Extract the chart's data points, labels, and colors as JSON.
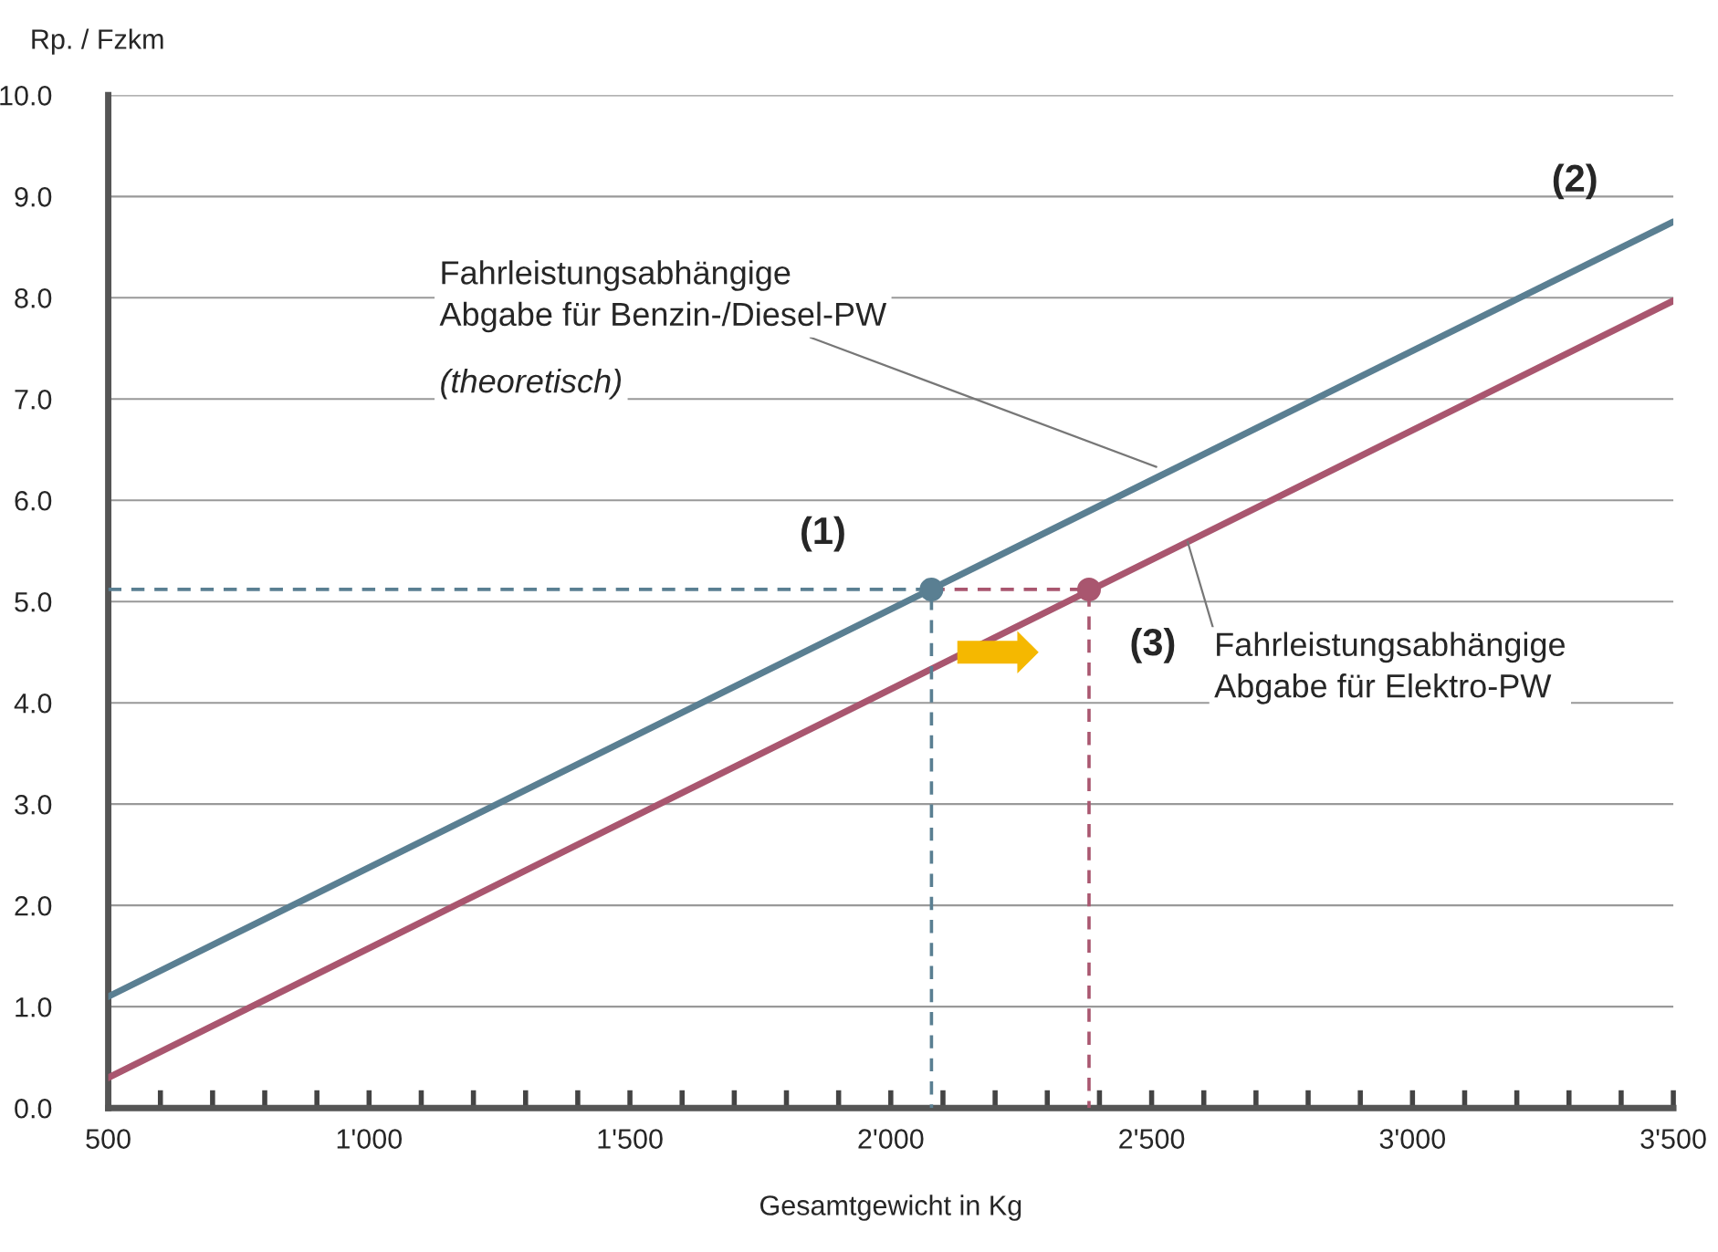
{
  "chart_data": {
    "type": "line",
    "xlabel": "Gesamtgewicht in Kg",
    "ylabel": "Rp. / Fzkm",
    "xlim": [
      500,
      3500
    ],
    "ylim": [
      0,
      10
    ],
    "xticks": [
      {
        "value": 500,
        "label": "500"
      },
      {
        "value": 600,
        "label": null
      },
      {
        "value": 700,
        "label": null
      },
      {
        "value": 800,
        "label": null
      },
      {
        "value": 900,
        "label": null
      },
      {
        "value": 1000,
        "label": "1'000"
      },
      {
        "value": 1100,
        "label": null
      },
      {
        "value": 1200,
        "label": null
      },
      {
        "value": 1300,
        "label": null
      },
      {
        "value": 1400,
        "label": null
      },
      {
        "value": 1500,
        "label": "1'500"
      },
      {
        "value": 1600,
        "label": null
      },
      {
        "value": 1700,
        "label": null
      },
      {
        "value": 1800,
        "label": null
      },
      {
        "value": 1900,
        "label": null
      },
      {
        "value": 2000,
        "label": "2'000"
      },
      {
        "value": 2100,
        "label": null
      },
      {
        "value": 2200,
        "label": null
      },
      {
        "value": 2300,
        "label": null
      },
      {
        "value": 2400,
        "label": null
      },
      {
        "value": 2500,
        "label": "2'500"
      },
      {
        "value": 2600,
        "label": null
      },
      {
        "value": 2700,
        "label": null
      },
      {
        "value": 2800,
        "label": null
      },
      {
        "value": 2900,
        "label": null
      },
      {
        "value": 3000,
        "label": "3'000"
      },
      {
        "value": 3100,
        "label": null
      },
      {
        "value": 3200,
        "label": null
      },
      {
        "value": 3300,
        "label": null
      },
      {
        "value": 3400,
        "label": null
      },
      {
        "value": 3500,
        "label": "3'500"
      }
    ],
    "yticks": [
      {
        "value": 0,
        "label": "0.0"
      },
      {
        "value": 1,
        "label": "1.0"
      },
      {
        "value": 2,
        "label": "2.0"
      },
      {
        "value": 3,
        "label": "3.0"
      },
      {
        "value": 4,
        "label": "4.0"
      },
      {
        "value": 5,
        "label": "5.0"
      },
      {
        "value": 6,
        "label": "6.0"
      },
      {
        "value": 7,
        "label": "7.0"
      },
      {
        "value": 8,
        "label": "8.0"
      },
      {
        "value": 9,
        "label": "9.0"
      },
      {
        "value": 10,
        "label": "10.0"
      }
    ],
    "grid": "y",
    "legend": false,
    "marker": "none",
    "line_style": "solid",
    "series": [
      {
        "color": "#5a7f92",
        "x": [
          500,
          3500
        ],
        "values": [
          1.1,
          8.75
        ]
      },
      {
        "color": "#a9566f",
        "x": [
          500,
          3500
        ],
        "values": [
          0.3,
          7.97
        ]
      },
      {
        "color": "#5a7f92",
        "x": [
          500,
          2078,
          2078
        ],
        "values": [
          5.12,
          5.12,
          0
        ],
        "line_style": "dashed"
      },
      {
        "color": "#a9566f",
        "x": [
          2078,
          2380,
          2380
        ],
        "values": [
          5.12,
          5.12,
          0
        ],
        "line_style": "dashed"
      },
      {
        "type": "scatter",
        "color": "#5a7f92",
        "x": [
          2078
        ],
        "values": [
          5.12
        ],
        "marker": "circle"
      },
      {
        "type": "scatter",
        "color": "#a9566f",
        "x": [
          2380
        ],
        "values": [
          5.12
        ],
        "marker": "circle"
      }
    ],
    "annotations": [
      {
        "text": "(1)",
        "x": 2078,
        "y": 5.12
      },
      {
        "text": "(2)",
        "x": 3500,
        "y": 8.75
      },
      {
        "text": "(3)",
        "x": 2380,
        "y": 5.12
      },
      {
        "text": "Fahrleistungsabhängige\nAbgabe für Benzin-/Diesel-PW",
        "x": 2509,
        "y": 6.33
      },
      "(theoretisch)",
      {
        "text": "Fahrleistungsabhängige\nAbgabe für Elektro-PW",
        "x": 2569,
        "y": 5.59
      }
    ]
  }
}
